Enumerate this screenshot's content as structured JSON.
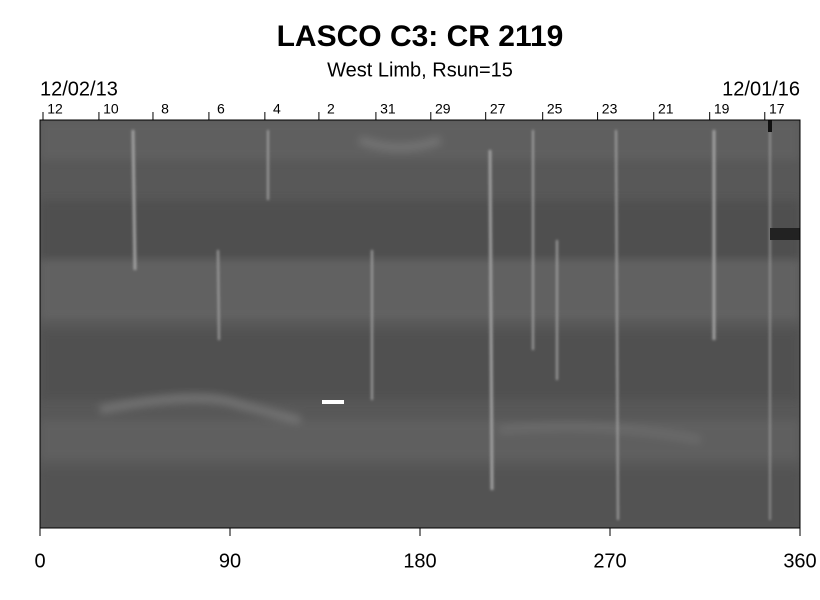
{
  "chart_data": {
    "type": "image",
    "title": "LASCO C3: CR 2119",
    "subtitle": "West Limb, Rsun=15",
    "start_label": "12/02/13",
    "end_label": "12/01/16",
    "xlim": [
      0,
      360
    ],
    "xticks": [
      0,
      90,
      180,
      270,
      360
    ],
    "x2ticks": [
      {
        "value": 7.1,
        "label": "12"
      },
      {
        "value": 33.6,
        "label": "10"
      },
      {
        "value": 59.2,
        "label": "8"
      },
      {
        "value": 85.7,
        "label": "6"
      },
      {
        "value": 112.2,
        "label": "4"
      },
      {
        "value": 137.8,
        "label": "2"
      },
      {
        "value": 164.8,
        "label": "31"
      },
      {
        "value": 190.8,
        "label": "29"
      },
      {
        "value": 216.8,
        "label": "27"
      },
      {
        "value": 243.8,
        "label": "25"
      },
      {
        "value": 269.8,
        "label": "23"
      },
      {
        "value": 296.4,
        "label": "21"
      },
      {
        "value": 322.9,
        "label": "19"
      },
      {
        "value": 349,
        "label": "17"
      }
    ]
  }
}
